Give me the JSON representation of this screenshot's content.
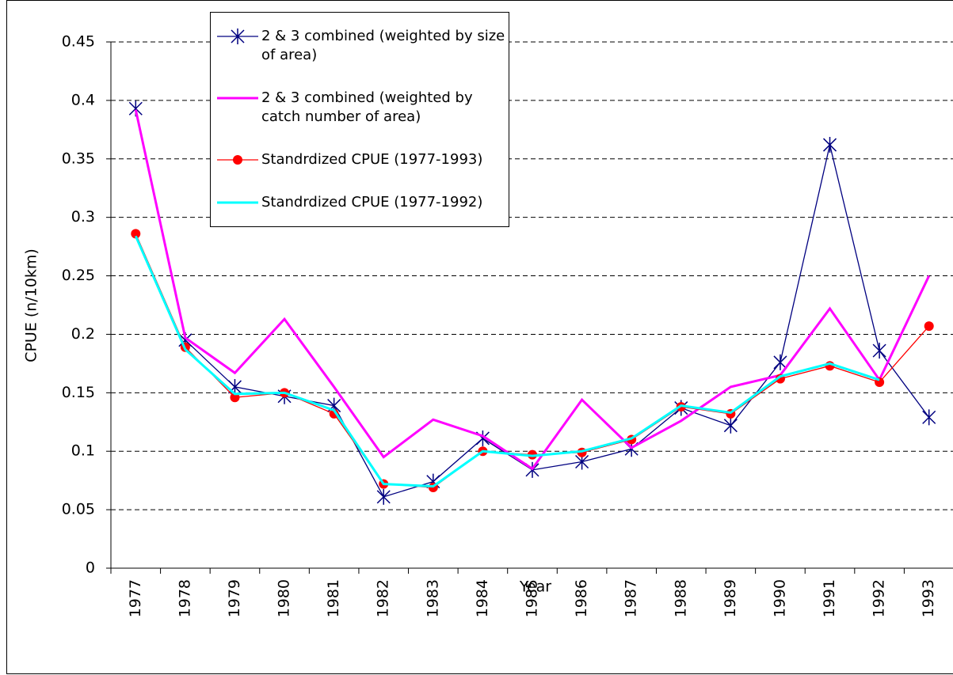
{
  "chart_data": {
    "type": "line",
    "x_label": "Year",
    "y_label": "CPUE (n/10km)",
    "categories": [
      "1977",
      "1978",
      "1979",
      "1980",
      "1981",
      "1982",
      "1983",
      "1984",
      "1985",
      "1986",
      "1987",
      "1988",
      "1989",
      "1990",
      "1991",
      "1992",
      "1993"
    ],
    "series": [
      {
        "name": "2 & 3 combined (weighted by size of area)",
        "color": "#000080",
        "marker": "star",
        "values": [
          0.393,
          0.195,
          0.155,
          0.147,
          0.139,
          0.061,
          0.074,
          0.111,
          0.084,
          0.091,
          0.102,
          0.137,
          0.122,
          0.176,
          0.362,
          0.186,
          0.129
        ]
      },
      {
        "name": "2 & 3 combined (weighted by catch number of area)",
        "color": "#ff00ff",
        "marker": "none",
        "values": [
          0.392,
          0.197,
          0.167,
          0.213,
          0.155,
          0.095,
          0.127,
          0.113,
          0.085,
          0.144,
          0.103,
          0.126,
          0.155,
          0.165,
          0.222,
          0.161,
          0.25
        ]
      },
      {
        "name": "Standrdized CPUE (1977-1993)",
        "color": "#ff0000",
        "marker": "circle",
        "values": [
          0.286,
          0.189,
          0.146,
          0.15,
          0.132,
          0.072,
          0.069,
          0.1,
          0.097,
          0.099,
          0.11,
          0.138,
          0.132,
          0.162,
          0.173,
          0.159,
          0.207
        ]
      },
      {
        "name": "Standrdized CPUE (1977-1992)",
        "color": "#00ffff",
        "marker": "none",
        "values": [
          0.284,
          0.187,
          0.149,
          0.15,
          0.135,
          0.072,
          0.07,
          0.1,
          0.096,
          0.1,
          0.111,
          0.139,
          0.133,
          0.164,
          0.175,
          0.161,
          null
        ]
      }
    ],
    "ylim": [
      0,
      0.45
    ],
    "yticks": [
      0,
      0.05,
      0.1,
      0.15,
      0.2,
      0.25,
      0.3,
      0.35,
      0.4,
      0.45
    ],
    "grid": true,
    "legend": "upper left"
  }
}
